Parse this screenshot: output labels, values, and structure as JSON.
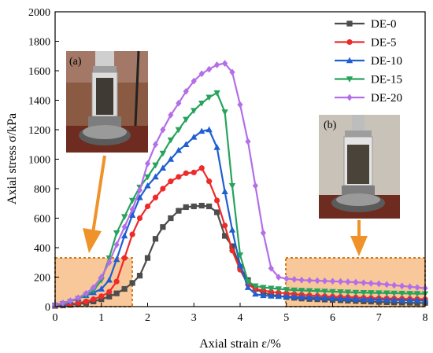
{
  "chart_data": {
    "type": "line",
    "xlabel": "Axial strain ε/%",
    "ylabel": "Axial stress σ/kPa",
    "xlim": [
      0,
      8
    ],
    "ylim": [
      0,
      2000
    ],
    "xticks": [
      0,
      1,
      2,
      3,
      4,
      5,
      6,
      7,
      8
    ],
    "yticks": [
      0,
      200,
      400,
      600,
      800,
      1000,
      1200,
      1400,
      1600,
      1800,
      2000
    ],
    "grid": false,
    "legend_position": "top-right",
    "series": [
      {
        "name": "DE-0",
        "color": "#4d4d4d",
        "marker": "square",
        "x": [
          0.0,
          0.17,
          0.33,
          0.5,
          0.67,
          0.83,
          1.0,
          1.17,
          1.33,
          1.5,
          1.67,
          1.83,
          2.0,
          2.17,
          2.33,
          2.5,
          2.67,
          2.83,
          3.0,
          3.17,
          3.33,
          3.5,
          3.67,
          3.83,
          4.0,
          4.17,
          4.33,
          4.5,
          4.67,
          4.83,
          5.0,
          5.17,
          5.33,
          5.5,
          5.67,
          5.83,
          6.0,
          6.17,
          6.33,
          6.5,
          6.67,
          6.83,
          7.0,
          7.17,
          7.33,
          7.5,
          7.67,
          7.83,
          8.0
        ],
        "y": [
          5,
          8,
          12,
          17,
          25,
          35,
          50,
          68,
          90,
          120,
          160,
          210,
          330,
          460,
          540,
          600,
          650,
          675,
          680,
          685,
          680,
          640,
          480,
          410,
          270,
          180,
          120,
          95,
          80,
          72,
          65,
          60,
          55,
          52,
          50,
          48,
          45,
          43,
          40,
          38,
          36,
          34,
          32,
          30,
          28,
          27,
          26,
          25,
          25
        ]
      },
      {
        "name": "DE-5",
        "color": "#ee2b2b",
        "marker": "circle",
        "x": [
          0.0,
          0.17,
          0.33,
          0.5,
          0.67,
          0.83,
          1.0,
          1.17,
          1.33,
          1.5,
          1.67,
          1.83,
          2.0,
          2.17,
          2.33,
          2.5,
          2.67,
          2.83,
          3.0,
          3.17,
          3.33,
          3.5,
          3.67,
          3.83,
          4.0,
          4.17,
          4.33,
          4.5,
          4.67,
          4.83,
          5.0,
          5.17,
          5.33,
          5.5,
          5.67,
          5.83,
          6.0,
          6.17,
          6.33,
          6.5,
          6.67,
          6.83,
          7.0,
          7.17,
          7.33,
          7.5,
          7.67,
          7.83,
          8.0
        ],
        "y": [
          5,
          10,
          17,
          25,
          35,
          50,
          70,
          100,
          170,
          330,
          490,
          600,
          680,
          740,
          800,
          850,
          880,
          905,
          910,
          940,
          850,
          720,
          550,
          380,
          250,
          150,
          120,
          110,
          100,
          95,
          90,
          85,
          80,
          76,
          72,
          70,
          68,
          66,
          64,
          62,
          60,
          58,
          56,
          55,
          54,
          53,
          52,
          51,
          50
        ]
      },
      {
        "name": "DE-10",
        "color": "#1f5fd1",
        "marker": "triangle-up",
        "x": [
          0.0,
          0.17,
          0.33,
          0.5,
          0.67,
          0.83,
          1.0,
          1.17,
          1.33,
          1.5,
          1.67,
          1.83,
          2.0,
          2.17,
          2.33,
          2.5,
          2.67,
          2.83,
          3.0,
          3.17,
          3.33,
          3.5,
          3.67,
          3.83,
          4.0,
          4.17,
          4.33,
          4.5,
          4.67,
          4.83,
          5.0,
          5.17,
          5.33,
          5.5,
          5.67,
          5.83,
          6.0,
          6.17,
          6.33,
          6.5,
          6.67,
          6.83,
          7.0,
          7.17,
          7.33,
          7.5,
          7.67,
          7.83,
          8.0
        ],
        "y": [
          10,
          20,
          35,
          55,
          75,
          95,
          120,
          180,
          320,
          480,
          620,
          740,
          820,
          880,
          940,
          1000,
          1060,
          1100,
          1150,
          1190,
          1200,
          1080,
          780,
          520,
          280,
          130,
          85,
          75,
          72,
          70,
          68,
          66,
          64,
          62,
          60,
          58,
          56,
          54,
          52,
          50,
          49,
          48,
          47,
          46,
          45,
          44,
          43,
          42,
          41
        ]
      },
      {
        "name": "DE-15",
        "color": "#27a35c",
        "marker": "triangle-down",
        "x": [
          0.0,
          0.17,
          0.33,
          0.5,
          0.67,
          0.83,
          1.0,
          1.17,
          1.33,
          1.5,
          1.67,
          1.83,
          2.0,
          2.17,
          2.33,
          2.5,
          2.67,
          2.83,
          3.0,
          3.17,
          3.33,
          3.5,
          3.67,
          3.83,
          4.0,
          4.17,
          4.33,
          4.5,
          4.67,
          4.83,
          5.0,
          5.17,
          5.33,
          5.5,
          5.67,
          5.83,
          6.0,
          6.17,
          6.33,
          6.5,
          6.67,
          6.83,
          7.0,
          7.17,
          7.33,
          7.5,
          7.67,
          7.83,
          8.0
        ],
        "y": [
          10,
          20,
          35,
          55,
          80,
          110,
          180,
          330,
          500,
          610,
          720,
          810,
          880,
          960,
          1040,
          1130,
          1200,
          1270,
          1330,
          1380,
          1420,
          1450,
          1320,
          820,
          350,
          170,
          140,
          130,
          125,
          120,
          115,
          112,
          110,
          108,
          106,
          104,
          102,
          100,
          98,
          96,
          95,
          94,
          93,
          92,
          91,
          90,
          89,
          88,
          87
        ]
      },
      {
        "name": "DE-20",
        "color": "#b36ee8",
        "marker": "diamond",
        "x": [
          0.0,
          0.17,
          0.33,
          0.5,
          0.67,
          0.83,
          1.0,
          1.17,
          1.33,
          1.5,
          1.67,
          1.83,
          2.0,
          2.17,
          2.33,
          2.5,
          2.67,
          2.83,
          3.0,
          3.17,
          3.33,
          3.5,
          3.67,
          3.83,
          4.0,
          4.17,
          4.33,
          4.5,
          4.67,
          4.83,
          5.0,
          5.17,
          5.33,
          5.5,
          5.67,
          5.83,
          6.0,
          6.17,
          6.33,
          6.5,
          6.67,
          6.83,
          7.0,
          7.17,
          7.33,
          7.5,
          7.67,
          7.83,
          8.0
        ],
        "y": [
          15,
          25,
          40,
          60,
          90,
          130,
          200,
          300,
          420,
          540,
          660,
          790,
          970,
          1100,
          1200,
          1300,
          1380,
          1460,
          1530,
          1580,
          1610,
          1640,
          1650,
          1590,
          1370,
          1120,
          820,
          500,
          260,
          200,
          190,
          185,
          180,
          178,
          176,
          174,
          172,
          170,
          168,
          165,
          162,
          158,
          155,
          150,
          145,
          140,
          135,
          130,
          125
        ]
      }
    ],
    "annotations": {
      "inset_a_label": "(a)",
      "inset_b_label": "(b)"
    }
  }
}
